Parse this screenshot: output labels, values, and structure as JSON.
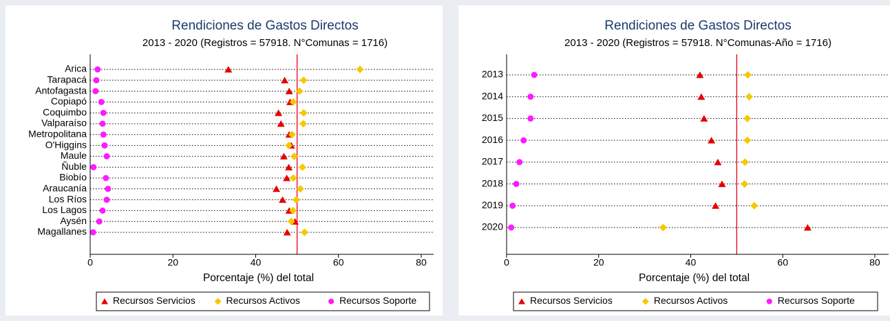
{
  "chart_data": [
    {
      "type": "dot",
      "title": "Rendiciones de Gastos Directos",
      "subtitle": "2013 - 2020 (Registros = 57918. N°Comunas = 1716)",
      "xlabel": "Porcentaje (%) del total",
      "categories": [
        "Arica",
        "Tarapacá",
        "Antofagasta",
        "Copiapó",
        "Coquimbo",
        "Valparaíso",
        "Metropolitana",
        "O'Higgins",
        "Maule",
        "Ñuble",
        "Biobío",
        "Araucanía",
        "Los Ríos",
        "Los Lagos",
        "Aysén",
        "Magallanes"
      ],
      "series": [
        {
          "name": "Recursos Servicios",
          "color": "#e60000",
          "marker": "triangle",
          "values": [
            33.4,
            47,
            48.1,
            48.3,
            45.5,
            46.1,
            48.1,
            48.6,
            46.8,
            48,
            47.5,
            45,
            46.5,
            48.1,
            49.5,
            47.6
          ]
        },
        {
          "name": "Recursos Activos",
          "color": "#f5c800",
          "marker": "diamond",
          "values": [
            65.2,
            51.6,
            50.6,
            49.1,
            51.6,
            51.5,
            48.8,
            48,
            49.3,
            51.3,
            49.1,
            50.8,
            49.8,
            49,
            48.6,
            51.8
          ]
        },
        {
          "name": "Recursos Soporte",
          "color": "#ff1aff",
          "marker": "circle",
          "values": [
            1.8,
            1.5,
            1.3,
            2.7,
            3.2,
            3,
            3.2,
            3.5,
            4,
            0.8,
            3.8,
            4.3,
            4,
            3,
            2.2,
            0.7
          ]
        }
      ],
      "xlim": [
        0,
        83
      ],
      "xticks": [
        0,
        20,
        40,
        60,
        80
      ],
      "reference_line": 50,
      "reference_color": "#e8001c"
    },
    {
      "type": "dot",
      "title": "Rendiciones de Gastos Directos",
      "subtitle": "2013 - 2020 (Registros = 57918. N°Comunas-Año = 1716)",
      "xlabel": "Porcentaje (%) del total",
      "categories": [
        "2013",
        "2014",
        "2015",
        "2016",
        "2017",
        "2018",
        "2019",
        "2020"
      ],
      "series": [
        {
          "name": "Recursos Servicios",
          "color": "#e60000",
          "marker": "triangle",
          "values": [
            42,
            42.3,
            42.9,
            44.5,
            45.9,
            46.8,
            45.4,
            65.4
          ]
        },
        {
          "name": "Recursos Activos",
          "color": "#f5c800",
          "marker": "diamond",
          "values": [
            52.4,
            52.7,
            52.3,
            52.3,
            51.8,
            51.7,
            53.8,
            34
          ]
        },
        {
          "name": "Recursos Soporte",
          "color": "#ff1aff",
          "marker": "circle",
          "values": [
            6,
            5.2,
            5.2,
            3.7,
            2.8,
            2.1,
            1.3,
            1
          ]
        }
      ],
      "xlim": [
        0,
        83
      ],
      "xticks": [
        0,
        20,
        40,
        60,
        80
      ],
      "reference_line": 50,
      "reference_color": "#e8001c"
    }
  ]
}
